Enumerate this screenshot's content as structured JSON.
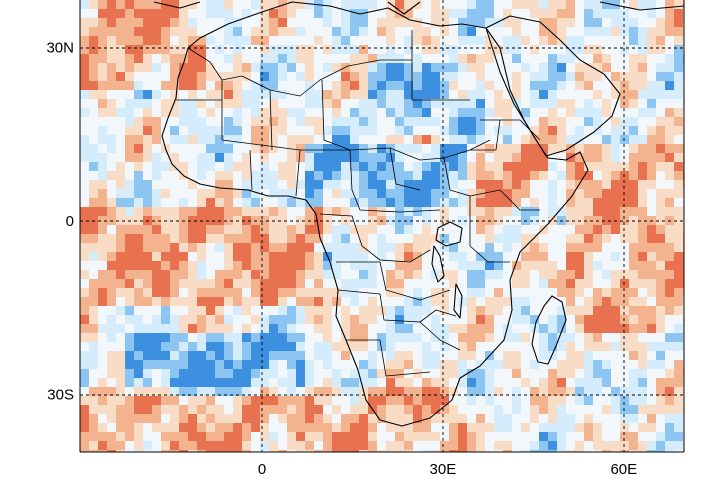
{
  "map": {
    "lat_labels": [
      {
        "lat": 30,
        "text": "30N"
      },
      {
        "lat": 0,
        "text": "0"
      },
      {
        "lat": -30,
        "text": "30S"
      }
    ],
    "lon_labels": [
      {
        "lon": 0,
        "text": "0"
      },
      {
        "lon": 30,
        "text": "30E"
      },
      {
        "lon": 60,
        "text": "60E"
      }
    ],
    "extent": {
      "lon_min": -30,
      "lon_max": 70,
      "lat_min": -40,
      "lat_max": 38
    },
    "colors": {
      "deep_blue": "#3d8fe0",
      "mid_blue": "#8cc4f2",
      "light_blue": "#d4ecfb",
      "near_white": "#f2f7fb",
      "light_orange": "#f8dcc6",
      "mid_orange": "#f3b38e",
      "deep_orange": "#e8714f"
    }
  }
}
